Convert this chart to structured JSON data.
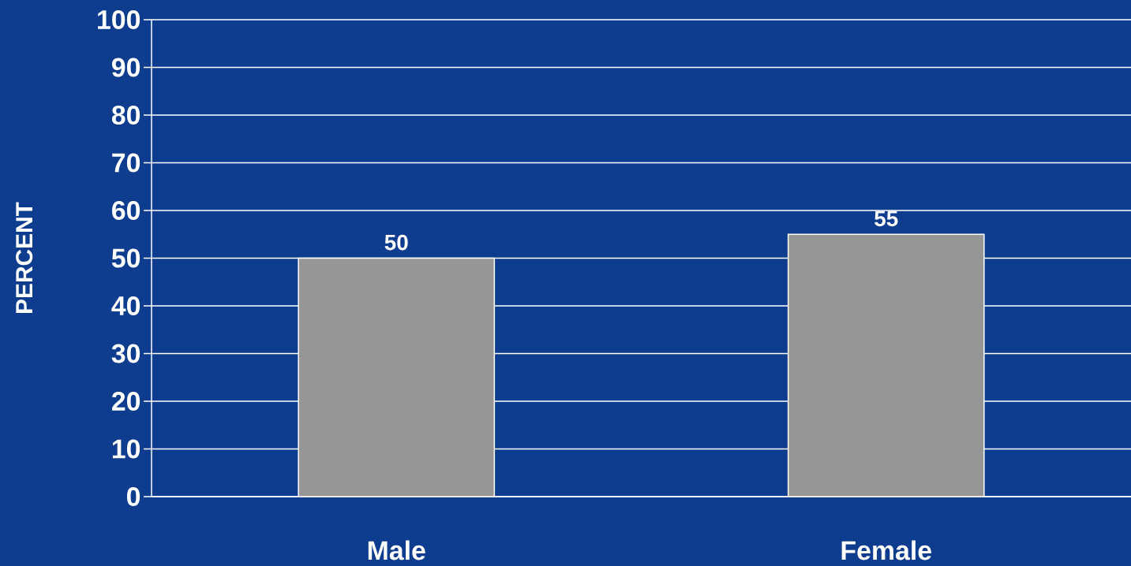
{
  "chart_data": {
    "type": "bar",
    "ylabel": "PERCENT",
    "categories": [
      "Male",
      "Female"
    ],
    "values": [
      50,
      55
    ],
    "color": "#969696",
    "ylim": [
      0,
      100
    ],
    "yticks": [
      0,
      10,
      20,
      30,
      40,
      50,
      60,
      70,
      80,
      90,
      100
    ],
    "grid": "y",
    "data_labels": true
  }
}
